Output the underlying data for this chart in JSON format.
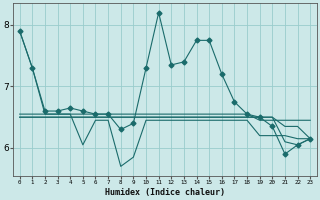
{
  "xlabel": "Humidex (Indice chaleur)",
  "ylabel": "",
  "bg_color": "#cce8e8",
  "grid_color": "#99cccc",
  "line_color": "#1a6b6b",
  "xlim": [
    -0.5,
    23.5
  ],
  "ylim": [
    5.55,
    8.35
  ],
  "yticks": [
    6,
    7,
    8
  ],
  "xtick_labels": [
    "0",
    "1",
    "2",
    "3",
    "4",
    "5",
    "6",
    "7",
    "8",
    "9",
    "10",
    "11",
    "12",
    "13",
    "14",
    "15",
    "16",
    "17",
    "18",
    "19",
    "20",
    "21",
    "22",
    "23"
  ],
  "series": [
    [
      7.9,
      7.3,
      6.55,
      6.55,
      6.55,
      6.55,
      6.55,
      6.55,
      6.55,
      6.55,
      6.55,
      6.55,
      6.55,
      6.55,
      6.55,
      6.55,
      6.55,
      6.55,
      6.55,
      6.45,
      6.45,
      6.45,
      6.45,
      6.45
    ],
    [
      6.55,
      6.55,
      6.55,
      6.55,
      6.55,
      6.05,
      6.45,
      6.45,
      5.7,
      5.85,
      6.45,
      6.45,
      6.45,
      6.45,
      6.45,
      6.45,
      6.45,
      6.45,
      6.45,
      6.2,
      6.2,
      6.2,
      6.15,
      6.15
    ],
    [
      6.5,
      6.5,
      6.5,
      6.5,
      6.5,
      6.5,
      6.5,
      6.5,
      6.5,
      6.5,
      6.5,
      6.5,
      6.5,
      6.5,
      6.5,
      6.5,
      6.5,
      6.5,
      6.5,
      6.5,
      6.5,
      6.1,
      6.05,
      6.15
    ],
    [
      6.5,
      6.5,
      6.5,
      6.5,
      6.5,
      6.5,
      6.5,
      6.5,
      6.5,
      6.5,
      6.5,
      6.5,
      6.5,
      6.5,
      6.5,
      6.5,
      6.5,
      6.5,
      6.5,
      6.5,
      6.5,
      6.35,
      6.35,
      6.15
    ],
    [
      7.9,
      7.3,
      6.6,
      6.6,
      6.65,
      6.6,
      6.55,
      6.55,
      6.3,
      6.4,
      7.3,
      8.2,
      7.35,
      7.4,
      7.75,
      7.75,
      7.2,
      6.75,
      6.55,
      6.5,
      6.35,
      5.9,
      6.05,
      6.15
    ]
  ],
  "marker_series": 4,
  "marker": "D",
  "markersize": 2.5,
  "linewidth": 0.8
}
